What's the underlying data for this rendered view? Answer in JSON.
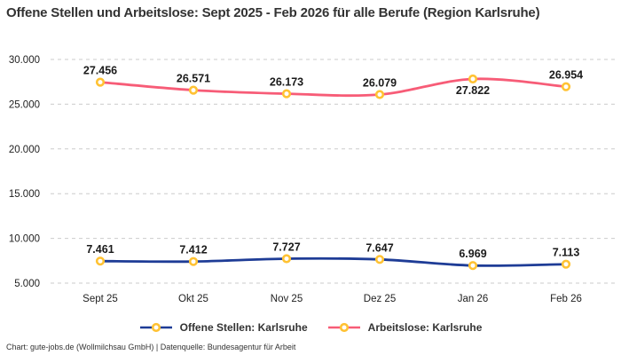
{
  "header": {
    "title": "Offene Stellen und Arbeitslose: Sept 2025 - Feb 2026 für alle Berufe (Region Karlsruhe)"
  },
  "footer": {
    "text": "Chart: gute-jobs.de (Wollmilchsau GmbH) | Datenquelle: Bundesagentur für Arbeit"
  },
  "chart_data": {
    "type": "line",
    "categories": [
      "Sept 25",
      "Okt 25",
      "Nov 25",
      "Dez 25",
      "Jan 26",
      "Feb 26"
    ],
    "series": [
      {
        "name": "Offene Stellen: Karlsruhe",
        "color": "#1E3C96",
        "values": [
          7461,
          7412,
          7727,
          7647,
          6969,
          7113
        ],
        "point_labels": [
          "7.461",
          "7.412",
          "7.727",
          "7.647",
          "6.969",
          "7.113"
        ],
        "label_positions": [
          "above",
          "above",
          "above",
          "above",
          "above",
          "above"
        ]
      },
      {
        "name": "Arbeitslose: Karlsruhe",
        "color": "#F75C77",
        "values": [
          27456,
          26571,
          26173,
          26079,
          27822,
          26954
        ],
        "point_labels": [
          "27.456",
          "26.571",
          "26.173",
          "26.079",
          "27.822",
          "26.954"
        ],
        "label_positions": [
          "above",
          "above",
          "above",
          "above",
          "below",
          "above"
        ]
      }
    ],
    "marker": {
      "fill": "#FFFFFF",
      "stroke": "#FFC233"
    },
    "ylim": [
      5000,
      30000
    ],
    "yticks": [
      {
        "value": 30000,
        "label": "30.000"
      },
      {
        "value": 25000,
        "label": "25.000"
      },
      {
        "value": 20000,
        "label": "20.000"
      },
      {
        "value": 15000,
        "label": "15.000"
      },
      {
        "value": 10000,
        "label": "10.000"
      },
      {
        "value": 5000,
        "label": "5.000"
      }
    ],
    "grid": "horizontal-dashed",
    "gridline_color": "#CBCBCB",
    "legend_position": "bottom-center",
    "xlabel": "",
    "ylabel": ""
  }
}
